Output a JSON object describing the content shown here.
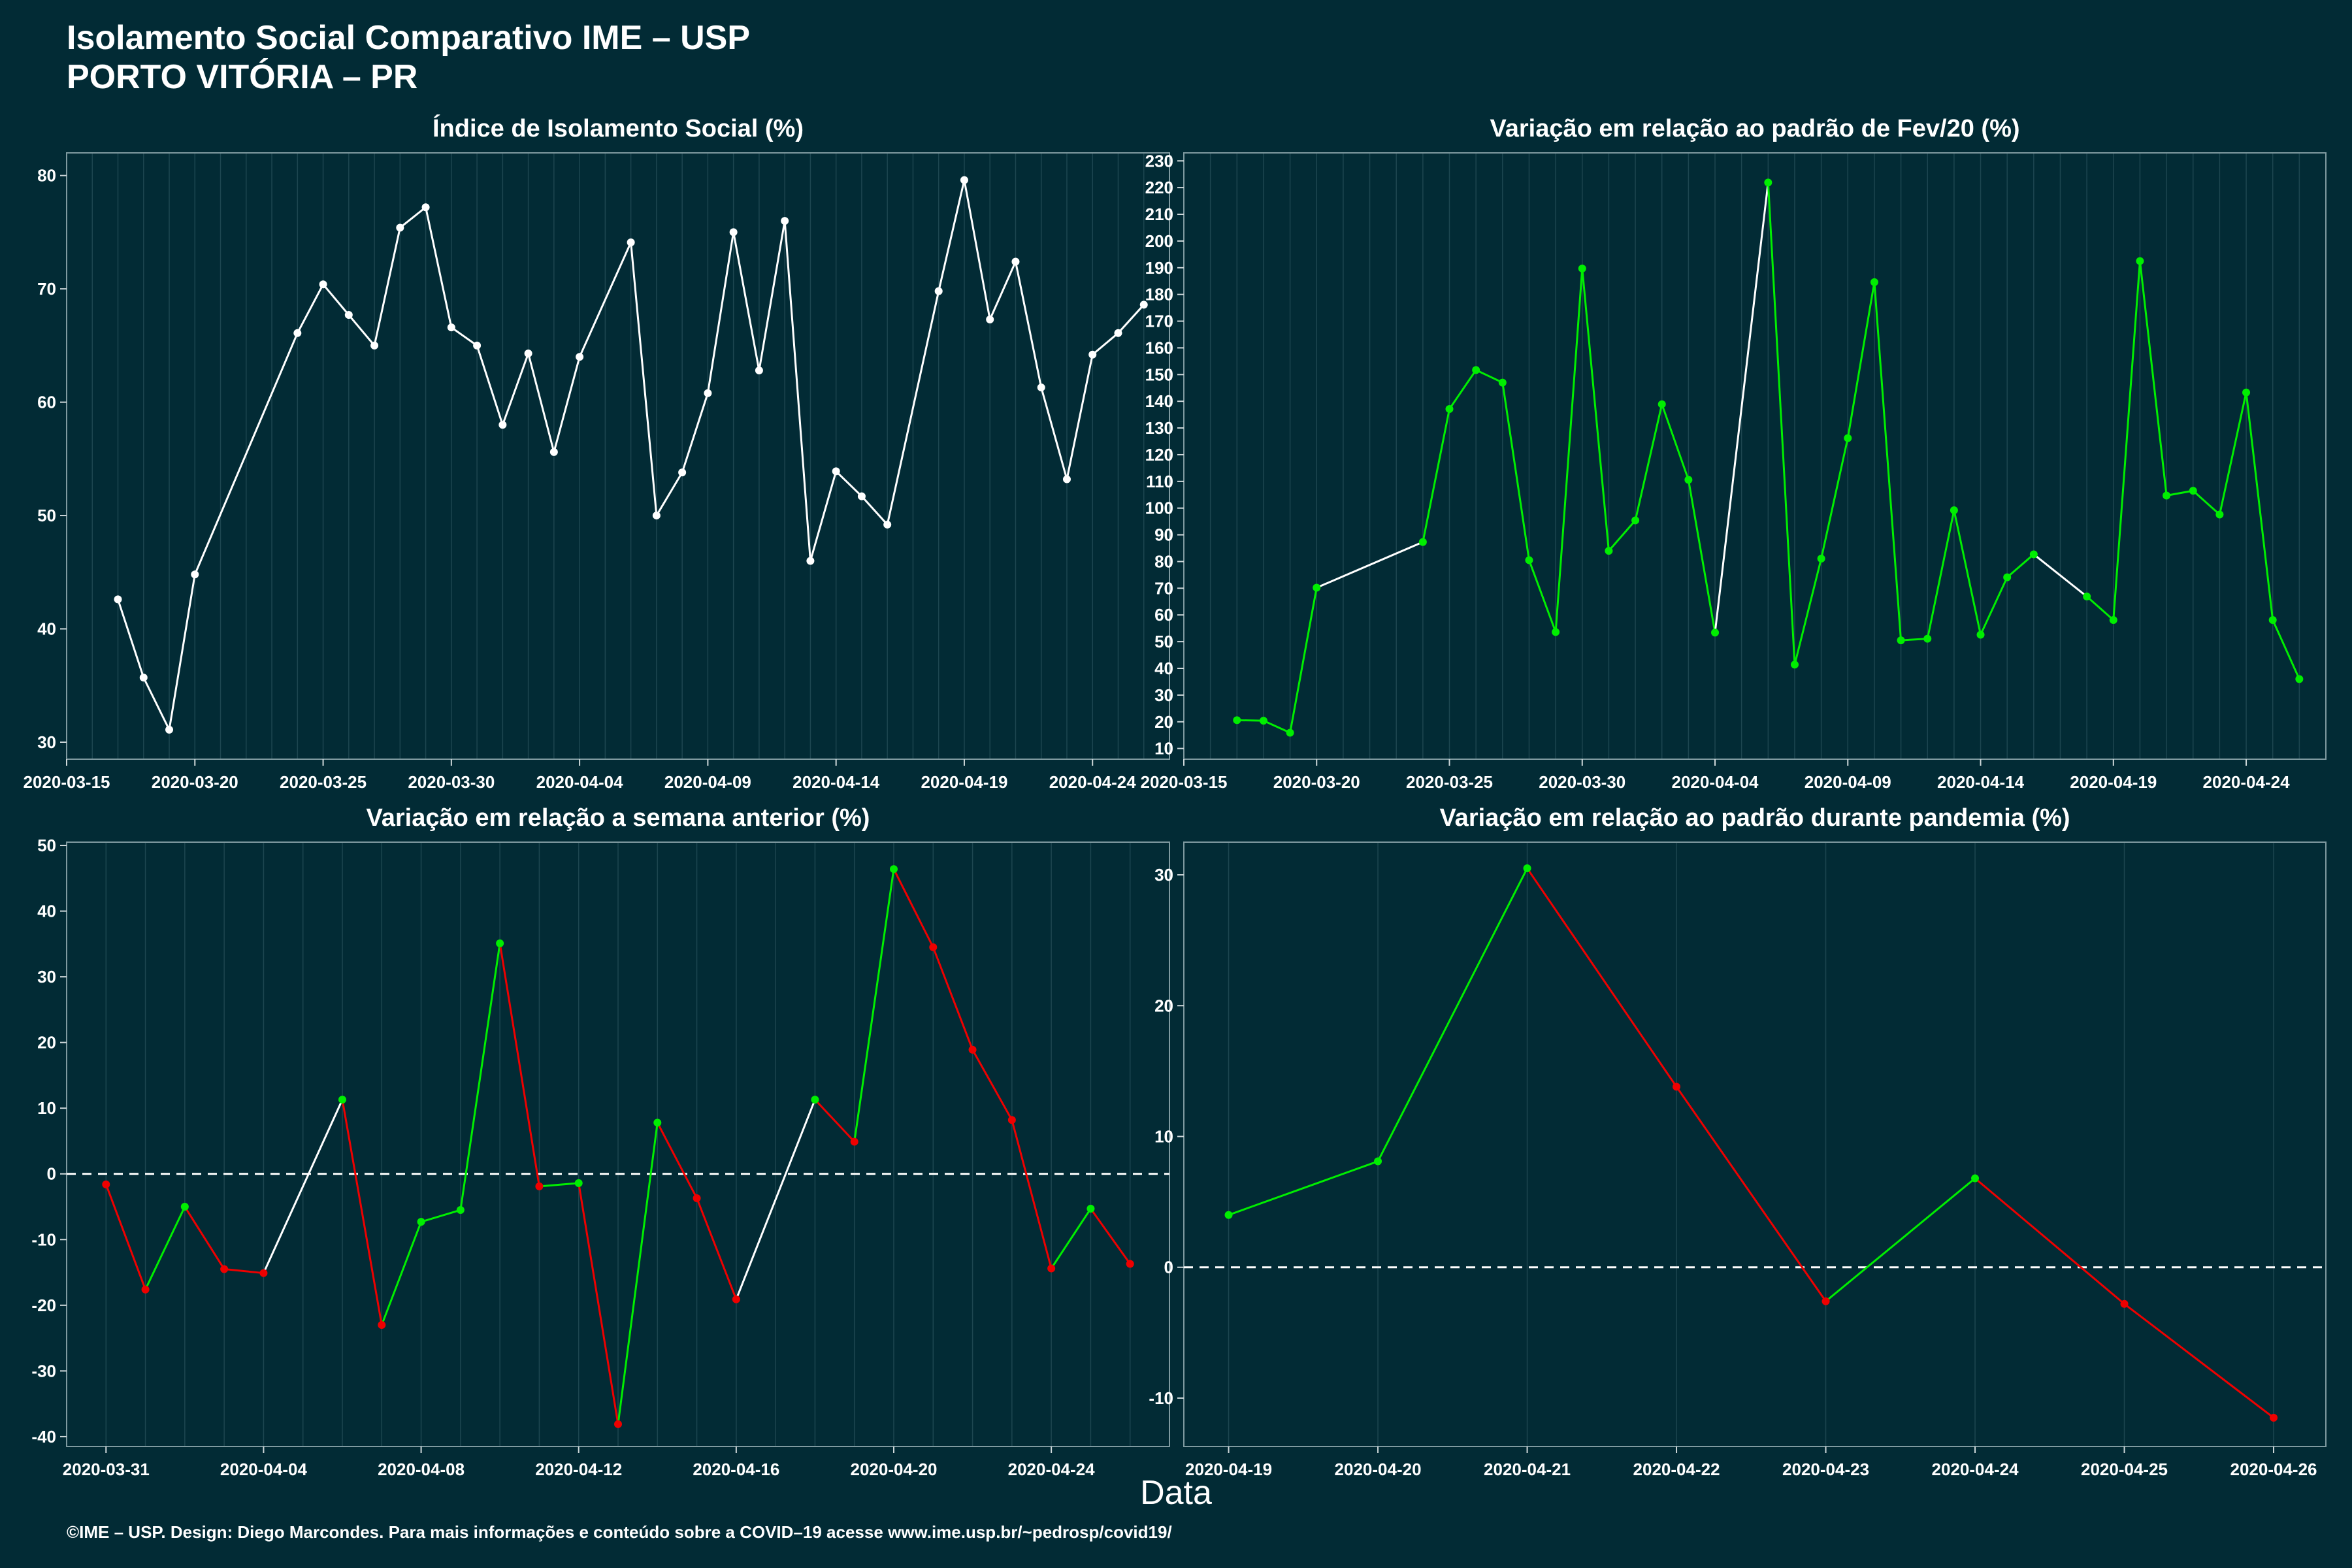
{
  "header": {
    "title_line1": "Isolamento Social Comparativo IME – USP",
    "title_line2": "PORTO VITÓRIA – PR"
  },
  "xlabel": "Data",
  "footer": "©IME – USP. Design: Diego Marcondes. Para mais informações e conteúdo sobre a COVID–19 acesse www.ime.usp.br/~pedrosp/covid19/",
  "colors": {
    "background": "#022b35",
    "up": "#00ee00",
    "down": "#ee0000",
    "neutral": "#ffffff",
    "grid": "#1d4650"
  },
  "chart_data": [
    {
      "type": "line",
      "title": "Índice de Isolamento Social (%)",
      "color_mode": "white",
      "xlim": [
        "2020-03-15",
        "2020-04-27"
      ],
      "ylim": [
        28.5,
        82
      ],
      "yticks": [
        30,
        40,
        50,
        60,
        70,
        80
      ],
      "xticks": [
        "2020-03-15",
        "2020-03-20",
        "2020-03-25",
        "2020-03-30",
        "2020-04-04",
        "2020-04-09",
        "2020-04-14",
        "2020-04-19",
        "2020-04-24"
      ],
      "zero_line": false,
      "points": [
        [
          "2020-03-17",
          42.6
        ],
        [
          "2020-03-18",
          35.7
        ],
        [
          "2020-03-19",
          31.1
        ],
        [
          "2020-03-20",
          44.8
        ],
        [
          "2020-03-24",
          66.1
        ],
        [
          "2020-03-25",
          70.4
        ],
        [
          "2020-03-26",
          67.7
        ],
        [
          "2020-03-27",
          65.0
        ],
        [
          "2020-03-28",
          75.4
        ],
        [
          "2020-03-29",
          77.2
        ],
        [
          "2020-03-30",
          66.6
        ],
        [
          "2020-03-31",
          65.0
        ],
        [
          "2020-04-01",
          58.0
        ],
        [
          "2020-04-02",
          64.3
        ],
        [
          "2020-04-03",
          55.6
        ],
        [
          "2020-04-04",
          64.0
        ],
        [
          "2020-04-06",
          74.1
        ],
        [
          "2020-04-07",
          50.0
        ],
        [
          "2020-04-08",
          53.8
        ],
        [
          "2020-04-09",
          60.8
        ],
        [
          "2020-04-10",
          75.0
        ],
        [
          "2020-04-11",
          62.8
        ],
        [
          "2020-04-12",
          76.0
        ],
        [
          "2020-04-13",
          46.0
        ],
        [
          "2020-04-14",
          53.9
        ],
        [
          "2020-04-15",
          51.7
        ],
        [
          "2020-04-16",
          49.2
        ],
        [
          "2020-04-18",
          69.8
        ],
        [
          "2020-04-19",
          79.6
        ],
        [
          "2020-04-20",
          67.3
        ],
        [
          "2020-04-21",
          72.4
        ],
        [
          "2020-04-22",
          61.3
        ],
        [
          "2020-04-23",
          53.2
        ],
        [
          "2020-04-24",
          64.2
        ],
        [
          "2020-04-25",
          66.1
        ],
        [
          "2020-04-26",
          68.6
        ]
      ]
    },
    {
      "type": "line",
      "title": "Variação em relação ao padrão de Fev/20 (%)",
      "color_mode": "green_white",
      "xlim": [
        "2020-03-15",
        "2020-04-27"
      ],
      "ylim": [
        6,
        233
      ],
      "yticks": [
        10,
        20,
        30,
        40,
        50,
        60,
        70,
        80,
        90,
        100,
        110,
        120,
        130,
        140,
        150,
        160,
        170,
        180,
        190,
        200,
        210,
        220,
        230
      ],
      "xticks": [
        "2020-03-15",
        "2020-03-20",
        "2020-03-25",
        "2020-03-30",
        "2020-04-04",
        "2020-04-09",
        "2020-04-14",
        "2020-04-19",
        "2020-04-24"
      ],
      "zero_line": false,
      "points": [
        [
          "2020-03-17",
          20.6
        ],
        [
          "2020-03-18",
          20.4
        ],
        [
          "2020-03-19",
          15.9
        ],
        [
          "2020-03-20",
          70.2
        ],
        [
          "2020-03-24",
          87.3
        ],
        [
          "2020-03-25",
          137.1
        ],
        [
          "2020-03-26",
          151.7
        ],
        [
          "2020-03-27",
          147.0
        ],
        [
          "2020-03-28",
          80.5
        ],
        [
          "2020-03-29",
          53.6
        ],
        [
          "2020-03-30",
          189.7
        ],
        [
          "2020-03-31",
          84.0
        ],
        [
          "2020-04-01",
          95.4
        ],
        [
          "2020-04-02",
          138.9
        ],
        [
          "2020-04-03",
          110.6
        ],
        [
          "2020-04-04",
          53.4
        ],
        [
          "2020-04-06",
          221.9
        ],
        [
          "2020-04-07",
          41.4
        ],
        [
          "2020-04-08",
          81.1
        ],
        [
          "2020-04-09",
          126.2
        ],
        [
          "2020-04-10",
          184.6
        ],
        [
          "2020-04-11",
          50.5
        ],
        [
          "2020-04-12",
          51.1
        ],
        [
          "2020-04-13",
          99.2
        ],
        [
          "2020-04-14",
          52.6
        ],
        [
          "2020-04-15",
          74.1
        ],
        [
          "2020-04-16",
          82.7
        ],
        [
          "2020-04-18",
          66.9
        ],
        [
          "2020-04-19",
          58.1
        ],
        [
          "2020-04-20",
          192.5
        ],
        [
          "2020-04-21",
          104.7
        ],
        [
          "2020-04-22",
          106.5
        ],
        [
          "2020-04-23",
          97.6
        ],
        [
          "2020-04-24",
          143.3
        ],
        [
          "2020-04-25",
          58.1
        ],
        [
          "2020-04-26",
          36.0
        ]
      ]
    },
    {
      "type": "line",
      "title": "Variação em relação a semana anterior (%)",
      "color_mode": "signed",
      "xlim": [
        "2020-03-30",
        "2020-04-27"
      ],
      "ylim": [
        -41.5,
        50.5
      ],
      "yticks": [
        -40,
        -30,
        -20,
        -10,
        0,
        10,
        20,
        30,
        40,
        50
      ],
      "xticks": [
        "2020-03-31",
        "2020-04-04",
        "2020-04-08",
        "2020-04-12",
        "2020-04-16",
        "2020-04-20",
        "2020-04-24"
      ],
      "zero_line": true,
      "points": [
        [
          "2020-03-31",
          -1.6
        ],
        [
          "2020-04-01",
          -17.6
        ],
        [
          "2020-04-02",
          -5.0
        ],
        [
          "2020-04-03",
          -14.5
        ],
        [
          "2020-04-04",
          -15.1
        ],
        [
          "2020-04-06",
          11.3
        ],
        [
          "2020-04-07",
          -23.0
        ],
        [
          "2020-04-08",
          -7.3
        ],
        [
          "2020-04-09",
          -5.5
        ],
        [
          "2020-04-10",
          35.1
        ],
        [
          "2020-04-11",
          -1.9
        ],
        [
          "2020-04-12",
          -1.4
        ],
        [
          "2020-04-13",
          -38.1
        ],
        [
          "2020-04-14",
          7.8
        ],
        [
          "2020-04-15",
          -3.7
        ],
        [
          "2020-04-16",
          -19.1
        ],
        [
          "2020-04-18",
          11.3
        ],
        [
          "2020-04-19",
          4.9
        ],
        [
          "2020-04-20",
          46.4
        ],
        [
          "2020-04-21",
          34.5
        ],
        [
          "2020-04-22",
          18.9
        ],
        [
          "2020-04-23",
          8.2
        ],
        [
          "2020-04-24",
          -14.4
        ],
        [
          "2020-04-25",
          -5.3
        ],
        [
          "2020-04-26",
          -13.7
        ]
      ]
    },
    {
      "type": "line",
      "title": "Variação em relação ao padrão durante pandemia (%)",
      "color_mode": "signed",
      "xlim": [
        "2020-04-18.7",
        "2020-04-26.35"
      ],
      "ylim": [
        -13.7,
        32.5
      ],
      "yticks": [
        -10,
        0,
        10,
        20,
        30
      ],
      "xticks": [
        "2020-04-19",
        "2020-04-20",
        "2020-04-21",
        "2020-04-22",
        "2020-04-23",
        "2020-04-24",
        "2020-04-25",
        "2020-04-26"
      ],
      "zero_line": true,
      "points": [
        [
          "2020-04-19",
          4.0
        ],
        [
          "2020-04-20",
          8.1
        ],
        [
          "2020-04-21",
          30.5
        ],
        [
          "2020-04-22",
          13.8
        ],
        [
          "2020-04-23",
          -2.6
        ],
        [
          "2020-04-24",
          6.8
        ],
        [
          "2020-04-25",
          -2.8
        ],
        [
          "2020-04-26",
          -11.5
        ]
      ]
    }
  ]
}
